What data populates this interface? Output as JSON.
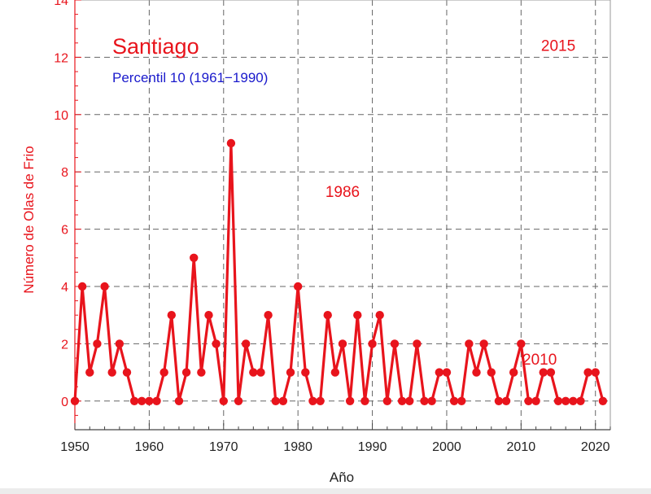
{
  "chart_data": {
    "type": "line",
    "title": "Santiago",
    "subtitle": "Percentil 10 (1961−1990)",
    "xlabel": "Año",
    "ylabel": "Número de Olas de Frio",
    "xlim": [
      1950,
      2022
    ],
    "ylim": [
      -1,
      14
    ],
    "xticks": [
      1950,
      1960,
      1970,
      1980,
      1990,
      2000,
      2010,
      2020
    ],
    "yticks": [
      0,
      2,
      4,
      6,
      8,
      10,
      12,
      14
    ],
    "xtick_labels": [
      "1950",
      "1960",
      "1970",
      "1980",
      "1990",
      "2000",
      "2010",
      "2020"
    ],
    "ytick_labels": [
      "0",
      "2",
      "4",
      "6",
      "8",
      "10",
      "12",
      "14"
    ],
    "grid": true,
    "annotations": [
      {
        "text": "2015",
        "x": 2015,
        "y": 12.4
      },
      {
        "text": "1986",
        "x": 1986,
        "y": 7.3
      },
      {
        "text": "2010",
        "x": 2012.5,
        "y": 1.45
      }
    ],
    "series": [
      {
        "x": [
          1950,
          1951,
          1952,
          1953,
          1954,
          1955,
          1956,
          1957,
          1958,
          1959,
          1960,
          1961,
          1962,
          1963,
          1964,
          1965,
          1966,
          1967,
          1968,
          1969,
          1970,
          1971,
          1972,
          1973,
          1974,
          1975,
          1976,
          1977,
          1978,
          1979,
          1980,
          1981,
          1982,
          1983,
          1984,
          1985,
          1986,
          1987,
          1988,
          1989,
          1990,
          1991,
          1992,
          1993,
          1994,
          1995,
          1996,
          1997,
          1998,
          1999,
          2000,
          2001,
          2002,
          2003,
          2004,
          2005,
          2006,
          2007,
          2008,
          2009,
          2010,
          2011,
          2012,
          2013,
          2014,
          2015,
          2016,
          2017,
          2018,
          2019,
          2020,
          2021
        ],
        "y": [
          0,
          4,
          1,
          2,
          4,
          1,
          2,
          1,
          0,
          0,
          0,
          0,
          1,
          3,
          0,
          1,
          5,
          1,
          3,
          2,
          0,
          9,
          0,
          2,
          1,
          1,
          3,
          0,
          0,
          1,
          4,
          1,
          0,
          0,
          3,
          1,
          2,
          0,
          3,
          0,
          2,
          3,
          0,
          2,
          0,
          0,
          2,
          0,
          0,
          1,
          1,
          0,
          0,
          2,
          1,
          2,
          1,
          0,
          0,
          1,
          2,
          0,
          0,
          1,
          1,
          0,
          0,
          0,
          0,
          1,
          1,
          0
        ]
      }
    ],
    "colors": {
      "series": "#e8141c",
      "axis_labels": "#e8141c",
      "subtitle": "#1a1acc",
      "frame": "#999999",
      "grid": "#666666"
    }
  }
}
